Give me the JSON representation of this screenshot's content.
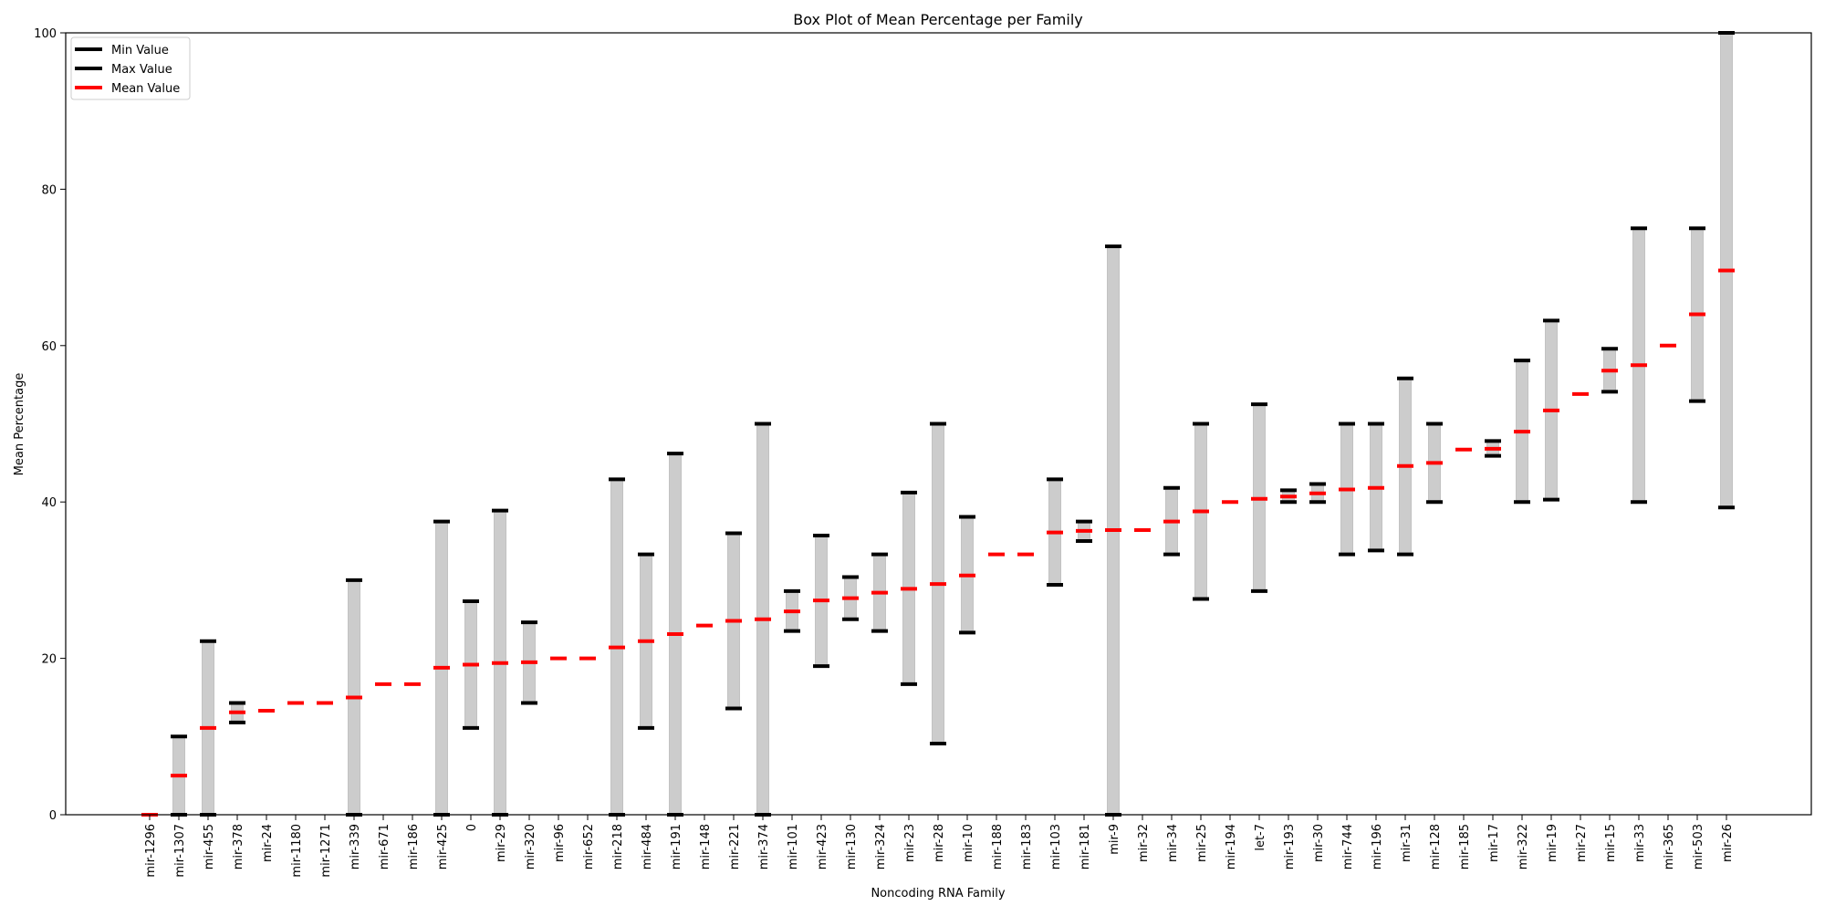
{
  "chart_data": {
    "type": "box",
    "title": "Box Plot of Mean Percentage per Family",
    "xlabel": "Noncoding RNA Family",
    "ylabel": "Mean Percentage",
    "ylim": [
      0,
      100
    ],
    "yticks": [
      0,
      20,
      40,
      60,
      80,
      100
    ],
    "grid": false,
    "legend_position": "top-left",
    "legend": [
      {
        "label": "Min Value",
        "color": "#000000"
      },
      {
        "label": "Max Value",
        "color": "#000000"
      },
      {
        "label": "Mean Value",
        "color": "#ff0000"
      }
    ],
    "colors": {
      "range_bar": "#cccccc",
      "min_max": "#000000",
      "mean": "#ff0000"
    },
    "categories": [
      "mir-1296",
      "mir-1307",
      "mir-455",
      "mir-378",
      "mir-24",
      "mir-1180",
      "mir-1271",
      "mir-339",
      "mir-671",
      "mir-186",
      "mir-425",
      "0",
      "mir-29",
      "mir-320",
      "mir-96",
      "mir-652",
      "mir-218",
      "mir-484",
      "mir-191",
      "mir-148",
      "mir-221",
      "mir-374",
      "mir-101",
      "mir-423",
      "mir-130",
      "mir-324",
      "mir-23",
      "mir-28",
      "mir-10",
      "mir-188",
      "mir-183",
      "mir-103",
      "mir-181",
      "mir-9",
      "mir-32",
      "mir-34",
      "mir-25",
      "mir-194",
      "let-7",
      "mir-193",
      "mir-30",
      "mir-744",
      "mir-196",
      "mir-31",
      "mir-128",
      "mir-185",
      "mir-17",
      "mir-322",
      "mir-19",
      "mir-27",
      "mir-15",
      "mir-33",
      "mir-365",
      "mir-503",
      "mir-26"
    ],
    "min": [
      0.0,
      0.0,
      0.0,
      11.8,
      13.3,
      14.3,
      14.3,
      0.0,
      16.7,
      16.7,
      0.0,
      11.1,
      0.0,
      14.3,
      20.0,
      20.0,
      0.0,
      11.1,
      0.0,
      24.2,
      13.6,
      0.0,
      23.5,
      19.0,
      25.0,
      23.5,
      16.7,
      9.1,
      23.3,
      33.3,
      33.3,
      29.4,
      35.0,
      0.0,
      36.4,
      33.3,
      27.6,
      40.0,
      28.6,
      40.0,
      40.0,
      33.3,
      33.8,
      33.3,
      40.0,
      46.7,
      45.9,
      40.0,
      40.3,
      53.8,
      54.1,
      40.0,
      60.0,
      52.9,
      39.3
    ],
    "max": [
      0.0,
      10.0,
      22.2,
      14.3,
      13.3,
      14.3,
      14.3,
      30.0,
      16.7,
      16.7,
      37.5,
      27.3,
      38.9,
      24.6,
      20.0,
      20.0,
      42.9,
      33.3,
      46.2,
      24.2,
      36.0,
      50.0,
      28.6,
      35.7,
      30.4,
      33.3,
      41.2,
      50.0,
      38.1,
      33.3,
      33.3,
      42.9,
      37.5,
      72.7,
      36.4,
      41.8,
      50.0,
      40.0,
      52.5,
      41.5,
      42.3,
      50.0,
      50.0,
      55.8,
      50.0,
      46.7,
      47.8,
      58.1,
      63.2,
      53.8,
      59.6,
      75.0,
      60.0,
      75.0,
      100.0
    ],
    "mean": [
      0.0,
      5.0,
      11.1,
      13.1,
      13.3,
      14.3,
      14.3,
      15.0,
      16.7,
      16.7,
      18.8,
      19.2,
      19.4,
      19.5,
      20.0,
      20.0,
      21.4,
      22.2,
      23.1,
      24.2,
      24.8,
      25.0,
      26.0,
      27.4,
      27.7,
      28.4,
      28.9,
      29.5,
      30.6,
      33.3,
      33.3,
      36.1,
      36.3,
      36.4,
      36.4,
      37.5,
      38.8,
      40.0,
      40.4,
      40.7,
      41.1,
      41.6,
      41.8,
      44.6,
      45.0,
      46.7,
      46.8,
      49.0,
      51.7,
      53.8,
      56.8,
      57.5,
      60.0,
      64.0,
      69.6
    ]
  }
}
